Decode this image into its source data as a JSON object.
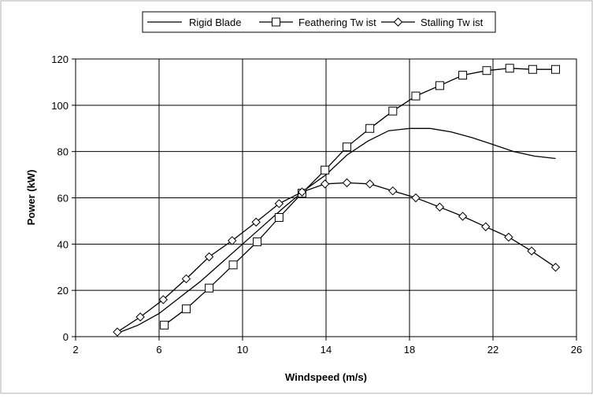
{
  "chart_data": {
    "type": "line",
    "xlabel": "Windspeed (m/s)",
    "ylabel": "Power (kW)",
    "xlim": [
      2,
      26
    ],
    "ylim": [
      0,
      120
    ],
    "x_ticks": [
      2,
      6,
      10,
      14,
      18,
      22,
      26
    ],
    "y_ticks": [
      0,
      20,
      40,
      60,
      80,
      100,
      120
    ],
    "grid": true,
    "legend_position": "top-center",
    "series": [
      {
        "name": "Rigid Blade",
        "marker": "none",
        "x": [
          4,
          5,
          6,
          7,
          8,
          9,
          10,
          11,
          12,
          13,
          14,
          15,
          16,
          17,
          18,
          19,
          20,
          21,
          22,
          23,
          24,
          25
        ],
        "y": [
          1.5,
          5,
          10,
          17,
          24,
          32,
          40,
          48,
          56,
          63.5,
          70,
          78.5,
          84.5,
          89,
          90,
          90,
          88.5,
          86,
          83,
          80,
          78,
          77
        ]
      },
      {
        "name": "Feathering Tw ist",
        "marker": "square",
        "x": [
          6.25,
          7.3,
          8.4,
          9.55,
          10.7,
          11.75,
          12.85,
          13.95,
          15,
          16.1,
          17.2,
          18.3,
          19.45,
          20.55,
          21.7,
          22.8,
          23.9,
          25
        ],
        "y": [
          5,
          12,
          21,
          31,
          41,
          51.5,
          62,
          72,
          82,
          90,
          97.5,
          104,
          108.5,
          113,
          115,
          116,
          115.5,
          115.5
        ]
      },
      {
        "name": "Stalling Tw ist",
        "marker": "diamond",
        "x": [
          4,
          5.1,
          6.2,
          7.3,
          8.4,
          9.5,
          10.65,
          11.75,
          12.85,
          13.95,
          15,
          16.1,
          17.2,
          18.3,
          19.45,
          20.55,
          21.65,
          22.75,
          23.85,
          25
        ],
        "y": [
          2,
          8.5,
          16,
          25,
          34.5,
          41.5,
          49.5,
          57.5,
          62.5,
          66,
          66.5,
          66,
          63,
          60,
          56,
          52,
          47.5,
          43,
          37,
          30
        ]
      }
    ]
  }
}
